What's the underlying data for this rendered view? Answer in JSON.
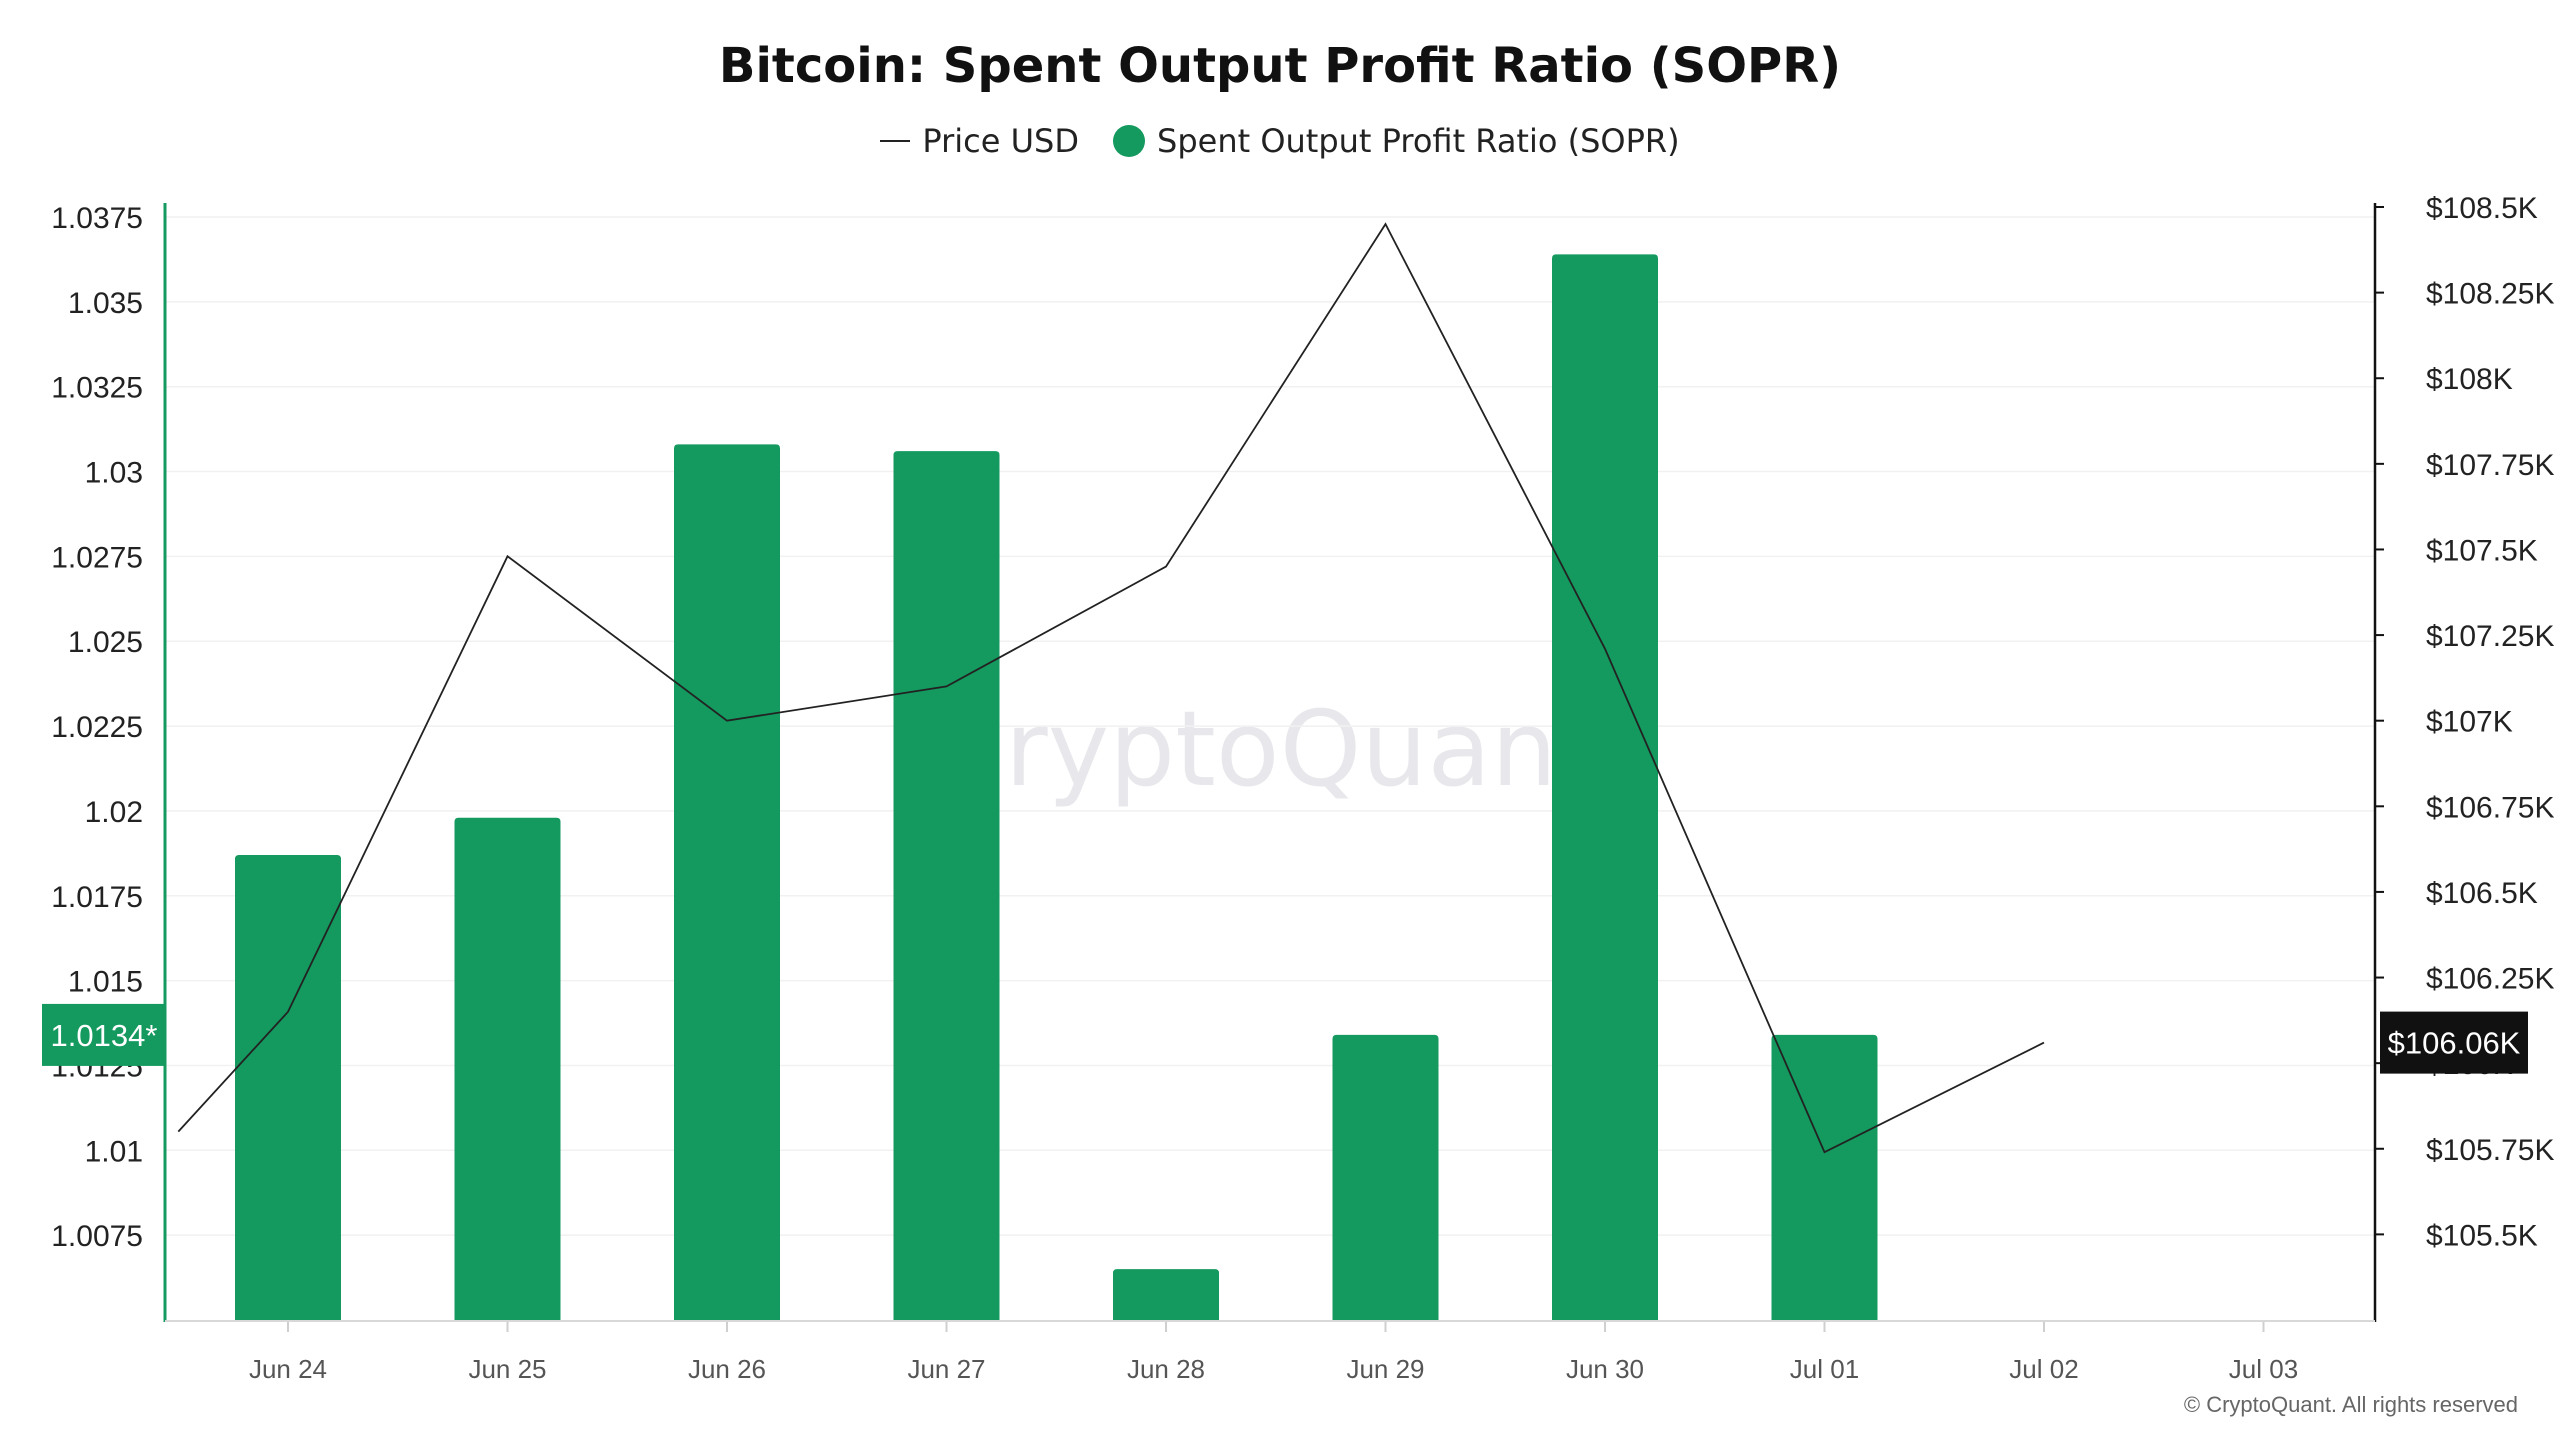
{
  "title": "Bitcoin: Spent Output Profit Ratio (SOPR)",
  "legend": [
    {
      "label": "Price USD",
      "type": "line",
      "color": "#222222"
    },
    {
      "label": "Spent Output Profit Ratio (SOPR)",
      "type": "dot",
      "color": "#14995f"
    }
  ],
  "watermark": "CryptoQuant",
  "copyright": "© CryptoQuant. All rights reserved",
  "colors": {
    "bar": "#14995f",
    "price_line": "#222222",
    "left_badge": "#14995f",
    "right_badge": "#111111"
  },
  "chart_data": {
    "type": "bar",
    "title": "Bitcoin: Spent Output Profit Ratio (SOPR)",
    "categories": [
      "Jun 24",
      "Jun 25",
      "Jun 26",
      "Jun 27",
      "Jun 28",
      "Jun 29",
      "Jun 30",
      "Jul 01",
      "Jul 02",
      "Jul 03"
    ],
    "left_axis": {
      "ylim": [
        1.005,
        1.0375
      ],
      "ticks": [
        "1.0075",
        "1.01",
        "1.0125",
        "1.015",
        "1.0175",
        "1.02",
        "1.0225",
        "1.025",
        "1.0275",
        "1.03",
        "1.0325",
        "1.035",
        "1.0375"
      ],
      "tick_values": [
        1.0075,
        1.01,
        1.0125,
        1.015,
        1.0175,
        1.02,
        1.0225,
        1.025,
        1.0275,
        1.03,
        1.0325,
        1.035,
        1.0375
      ],
      "current_badge": {
        "label": "1.0134*",
        "value": 1.0134
      }
    },
    "right_axis": {
      "ylim": [
        105.25,
        108.5
      ],
      "ticks": [
        "$105.5K",
        "$105.75K",
        "$106K",
        "$106.25K",
        "$106.5K",
        "$106.75K",
        "$107K",
        "$107.25K",
        "$107.5K",
        "$107.75K",
        "$108K",
        "$108.25K",
        "$108.5K"
      ],
      "tick_values": [
        105.5,
        105.75,
        106.0,
        106.25,
        106.5,
        106.75,
        107.0,
        107.25,
        107.5,
        107.75,
        108.0,
        108.25,
        108.5
      ],
      "current_badge": {
        "label": "$106.06K",
        "value": 106.06
      }
    },
    "series": [
      {
        "name": "Spent Output Profit Ratio (SOPR)",
        "type": "bar",
        "axis": "left",
        "x": [
          "Jun 24",
          "Jun 25",
          "Jun 26",
          "Jun 27",
          "Jun 28",
          "Jun 29",
          "Jun 30",
          "Jul 01"
        ],
        "values": [
          1.0187,
          1.0198,
          1.0308,
          1.0306,
          1.0065,
          1.0134,
          1.0364,
          1.0134
        ]
      },
      {
        "name": "Price USD",
        "type": "line",
        "axis": "right",
        "x": [
          -0.5,
          0,
          1,
          2,
          3,
          4,
          5,
          6,
          7,
          8
        ],
        "values": [
          105.8,
          106.15,
          107.48,
          107.0,
          107.1,
          107.45,
          108.45,
          107.21,
          105.74,
          106.06
        ]
      }
    ],
    "grid": true,
    "legend_position": "top-center"
  }
}
